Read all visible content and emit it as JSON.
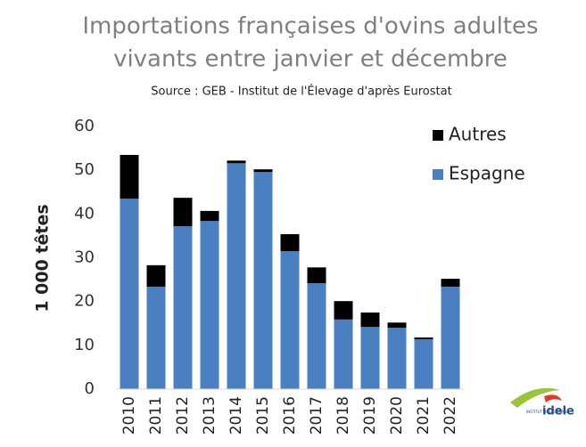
{
  "chart_data": {
    "type": "stacked_bar",
    "title": [
      "Importations françaises d'ovins adultes",
      "vivants entre janvier et décembre"
    ],
    "subtitle": "Source : GEB - Institut de l'Élevage d'après Eurostat",
    "y_label": "1 000 têtes",
    "categories": [
      "2010",
      "2011",
      "2012",
      "2013",
      "2014",
      "2015",
      "2016",
      "2017",
      "2018",
      "2019",
      "2020",
      "2021",
      "2022"
    ],
    "series": [
      {
        "name": "Espagne",
        "color": "#4a7fc1",
        "values": [
          43.5,
          23.4,
          37.2,
          38.4,
          51.6,
          49.6,
          31.5,
          24.2,
          15.9,
          14.2,
          14.0,
          11.4,
          23.4
        ]
      },
      {
        "name": "Autres",
        "color": "#000000",
        "values": [
          10.0,
          4.9,
          6.5,
          2.3,
          0.6,
          0.6,
          3.9,
          3.6,
          4.2,
          3.3,
          1.2,
          0.4,
          1.8
        ]
      }
    ],
    "ylim": [
      0,
      60
    ],
    "yticks": [
      0,
      10,
      20,
      30,
      40,
      50,
      60
    ],
    "legend": "top-right",
    "logo": {
      "text": "idele",
      "caption": "INSTITUT DE L'ÉLEVAGE"
    }
  }
}
